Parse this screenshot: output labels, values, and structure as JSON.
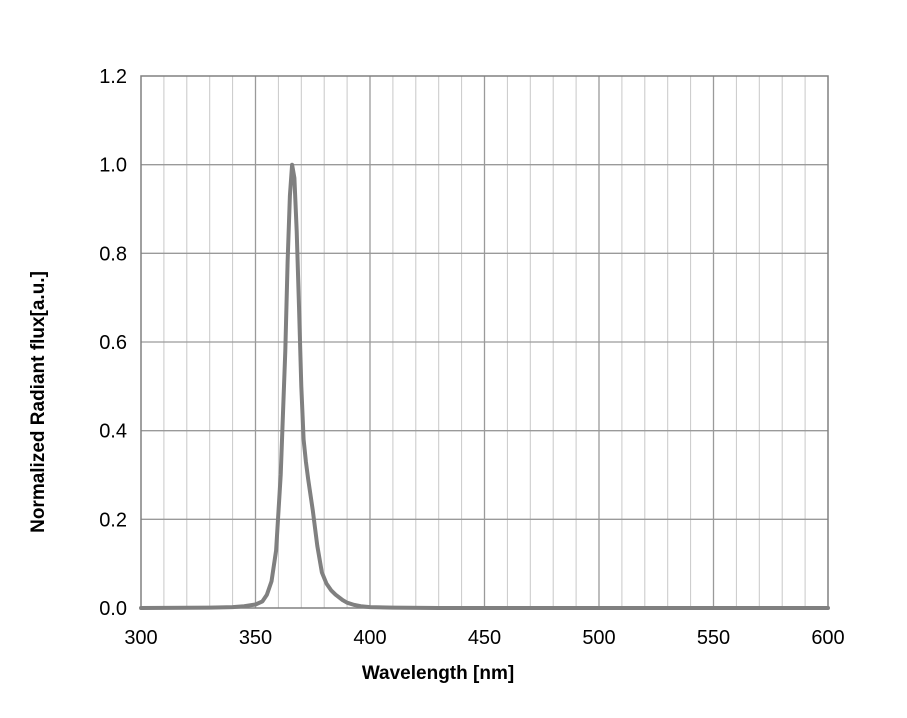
{
  "chart_data": {
    "type": "line",
    "title": "",
    "xlabel": "Wavelength [nm]",
    "ylabel": "Normalized Radiant flux[a.u.]",
    "xlim": [
      300,
      600
    ],
    "ylim": [
      0,
      1.2
    ],
    "xticks": [
      "300",
      "350",
      "400",
      "450",
      "500",
      "550",
      "600"
    ],
    "yticks": [
      "0.0",
      "0.2",
      "0.4",
      "0.6",
      "0.8",
      "1.0",
      "1.2"
    ],
    "grid": true,
    "legend": "none",
    "series_color": "#808080",
    "series": [
      {
        "x": [
          300,
          330,
          340,
          345,
          350,
          353,
          355,
          357,
          359,
          361,
          363,
          364,
          365,
          366,
          367,
          368,
          369,
          370,
          371,
          372,
          373,
          375,
          377,
          379,
          381,
          383,
          385,
          388,
          390,
          393,
          396,
          400,
          410,
          430,
          460,
          500,
          550,
          600
        ],
        "y": [
          0,
          0.001,
          0.002,
          0.004,
          0.008,
          0.015,
          0.03,
          0.06,
          0.13,
          0.3,
          0.58,
          0.78,
          0.93,
          1.0,
          0.97,
          0.85,
          0.68,
          0.5,
          0.38,
          0.33,
          0.29,
          0.22,
          0.14,
          0.08,
          0.055,
          0.04,
          0.03,
          0.018,
          0.012,
          0.007,
          0.004,
          0.002,
          0.001,
          0,
          0,
          0,
          0,
          0
        ]
      }
    ]
  }
}
